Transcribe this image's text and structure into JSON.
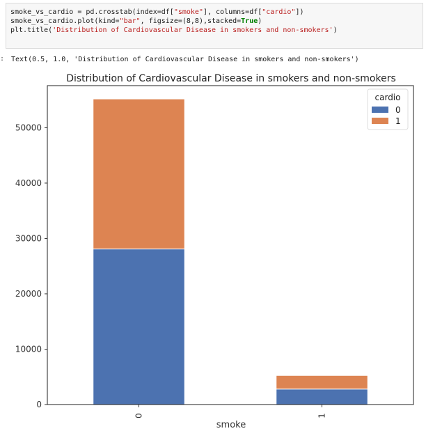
{
  "code_cell": {
    "line1_a": "smoke_vs_cardio = pd.crosstab(index=df[",
    "line1_s1": "\"smoke\"",
    "line1_b": "], columns=df[",
    "line1_s2": "\"cardio\"",
    "line1_c": "])",
    "line2_a": "smoke_vs_cardio.plot(kind=",
    "line2_s1": "\"bar\"",
    "line2_b": ", figsize=(8,8),stacked=",
    "line2_kw": "True",
    "line2_c": ")",
    "line3_a": "plt.title(",
    "line3_s1": "'Distribution of Cardiovascular Disease in smokers and non-smokers'",
    "line3_c": ")"
  },
  "output": {
    "prompt": ":",
    "text": "Text(0.5, 1.0, 'Distribution of Cardiovascular Disease in smokers and non-smokers')"
  },
  "chart_data": {
    "type": "bar",
    "stacked": true,
    "title": "Distribution of Cardiovascular Disease in smokers and non-smokers",
    "xlabel": "smoke",
    "ylabel": "",
    "categories": [
      "0",
      "1"
    ],
    "series": [
      {
        "name": "0",
        "values": [
          28100,
          2800
        ],
        "color": "#4c72b0"
      },
      {
        "name": "1",
        "values": [
          27100,
          2450
        ],
        "color": "#dd8452"
      }
    ],
    "ylim": [
      0,
      57600
    ],
    "yticks": [
      0,
      10000,
      20000,
      30000,
      40000,
      50000
    ],
    "legend": {
      "title": "cardio",
      "placement": "top-right"
    },
    "grid": false
  }
}
